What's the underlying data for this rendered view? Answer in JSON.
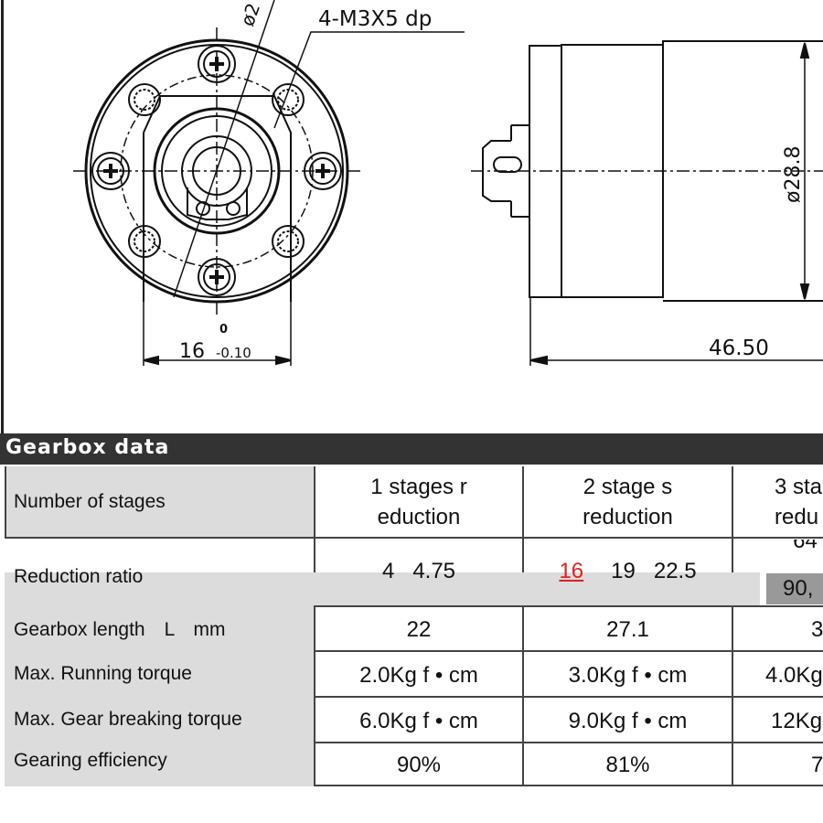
{
  "drawing": {
    "diameter_partial": "ø2",
    "thread_note": "4-M3X5 dp",
    "flat_dim_upper": "0",
    "flat_dim": "16",
    "flat_dim_tol": "-0.10",
    "length_dim": "46.50",
    "body_diameter": "ø28.8"
  },
  "section_title": "Gearbox data",
  "table": {
    "row_labels": [
      "Number of stages",
      "Reduction ratio",
      "Gearbox length　L　mm",
      "Max. Running torque",
      "Max. Gear  breaking torque",
      "Gearing efficiency"
    ],
    "columns": [
      {
        "header_line1": "1 stages r",
        "header_line2": "eduction",
        "ratio": "4   4.75",
        "length": "22",
        "running": "2.0Kg f • cm",
        "breaking": "6.0Kg f • cm",
        "efficiency": "90%"
      },
      {
        "header_line1": "2 stage s",
        "header_line2": "reduction",
        "ratio_highlight": "16",
        "ratio": "19   22.5",
        "length": "27.1",
        "running": "3.0Kg f • cm",
        "breaking": "9.0Kg f • cm",
        "efficiency": "81%"
      },
      {
        "header_line1": "3 sta",
        "header_line2": "redu",
        "ratio": "64 .",
        "ratio_line2": "90,",
        "length": "3",
        "running": "4.0Kg",
        "breaking": "12Kg",
        "efficiency": "7"
      }
    ]
  },
  "colors": {
    "header_bar": "#333333",
    "label_bg": "#dcdcdc",
    "highlight": "#e02020",
    "dark_cell": "#999999"
  }
}
